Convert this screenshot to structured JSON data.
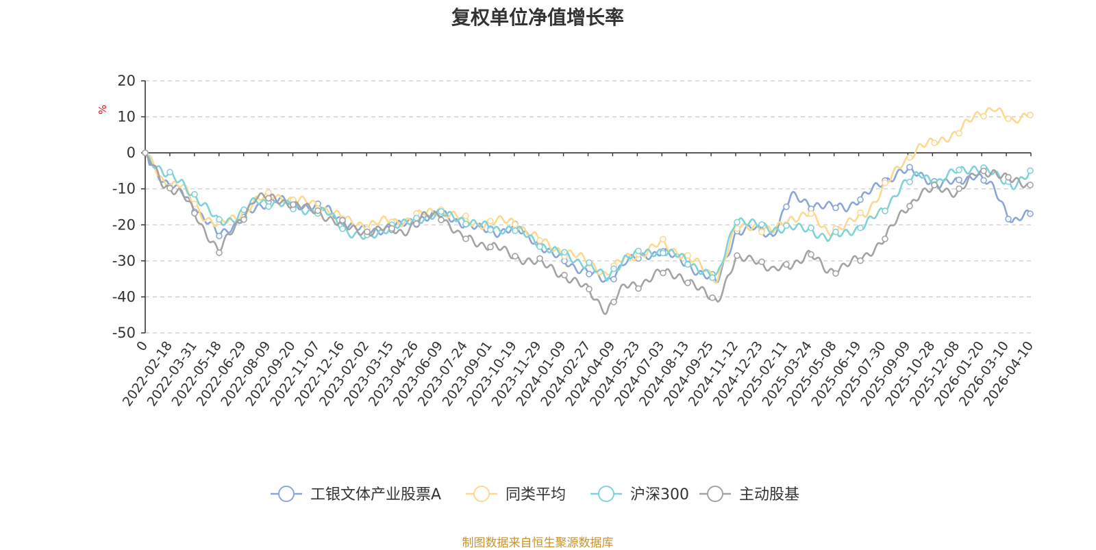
{
  "title": "复权单位净值增长率",
  "footer": "制图数据来自恒生聚源数据库",
  "chart_data": {
    "type": "line",
    "title": "复权单位净值增长率",
    "ylabel": "%",
    "ylim": [
      -50,
      20
    ],
    "yticks": [
      20,
      10,
      0,
      -10,
      -20,
      -30,
      -40,
      -50
    ],
    "grid": "horizontal dashed",
    "legend_position": "bottom",
    "x_ticks": [
      "0",
      "2022-02-18",
      "2022-03-31",
      "2022-05-18",
      "2022-06-29",
      "2022-08-09",
      "2022-09-20",
      "2022-11-07",
      "2022-12-16",
      "2023-02-02",
      "2023-03-15",
      "2023-04-26",
      "2023-06-09",
      "2023-07-24",
      "2023-09-01",
      "2023-10-19",
      "2023-11-29",
      "2024-01-09",
      "2024-02-27",
      "2024-04-09",
      "2024-05-23",
      "2024-07-03",
      "2024-08-13",
      "2024-09-25",
      "2024-11-12",
      "2024-12-23",
      "2025-02-11",
      "2025-03-24",
      "2025-05-08",
      "2025-06-19",
      "2025-07-30",
      "2025-09-09",
      "2025-10-28",
      "2025-12-08",
      "2026-01-20",
      "2026-03-10",
      "2026-04-10"
    ],
    "series": [
      {
        "name": "工银文体产业股票A",
        "color": "#8aa6d9",
        "values": [
          0,
          -9,
          -10,
          -18,
          -22,
          -20,
          -15,
          -13,
          -14,
          -15,
          -16,
          -20,
          -22,
          -21,
          -20,
          -18,
          -17,
          -19,
          -21,
          -22,
          -21,
          -24,
          -28,
          -31,
          -33,
          -36,
          -30,
          -29,
          -27,
          -30,
          -33,
          -36,
          -22,
          -21,
          -23,
          -12,
          -14,
          -15,
          -15,
          -12,
          -8,
          -5,
          -6,
          -9,
          -8,
          -6,
          -10,
          -19,
          -17
        ]
      },
      {
        "name": "同类平均",
        "color": "#fbd98f",
        "values": [
          0,
          -8,
          -9,
          -17,
          -20,
          -18,
          -13,
          -12,
          -13,
          -14,
          -16,
          -19,
          -20,
          -19,
          -19,
          -17,
          -16,
          -18,
          -20,
          -19,
          -19,
          -23,
          -26,
          -28,
          -30,
          -34,
          -29,
          -28,
          -25,
          -28,
          -31,
          -35,
          -21,
          -20,
          -22,
          -18,
          -17,
          -22,
          -20,
          -17,
          -10,
          -3,
          2,
          3,
          6,
          10,
          13,
          8,
          12
        ]
      },
      {
        "name": "沪深300",
        "color": "#7fd3d8",
        "values": [
          0,
          -6,
          -8,
          -14,
          -19,
          -18,
          -13,
          -14,
          -15,
          -16,
          -17,
          -22,
          -24,
          -21,
          -20,
          -18,
          -17,
          -18,
          -20,
          -21,
          -21,
          -24,
          -27,
          -29,
          -31,
          -35,
          -29,
          -28,
          -27,
          -29,
          -32,
          -35,
          -18,
          -20,
          -21,
          -21,
          -21,
          -24,
          -22,
          -20,
          -16,
          -9,
          -6,
          -8,
          -5,
          -4,
          -6,
          -9,
          -6
        ]
      },
      {
        "name": "主动股基",
        "color": "#a3a3a3",
        "values": [
          0,
          -9,
          -11,
          -20,
          -27,
          -20,
          -12,
          -13,
          -14,
          -16,
          -18,
          -21,
          -22,
          -21,
          -22,
          -18,
          -17,
          -23,
          -25,
          -26,
          -29,
          -30,
          -32,
          -35,
          -38,
          -44,
          -37,
          -36,
          -33,
          -34,
          -38,
          -41,
          -30,
          -29,
          -33,
          -31,
          -28,
          -33,
          -31,
          -29,
          -24,
          -17,
          -11,
          -10,
          -11,
          -6,
          -5,
          -8,
          -9
        ]
      }
    ]
  }
}
